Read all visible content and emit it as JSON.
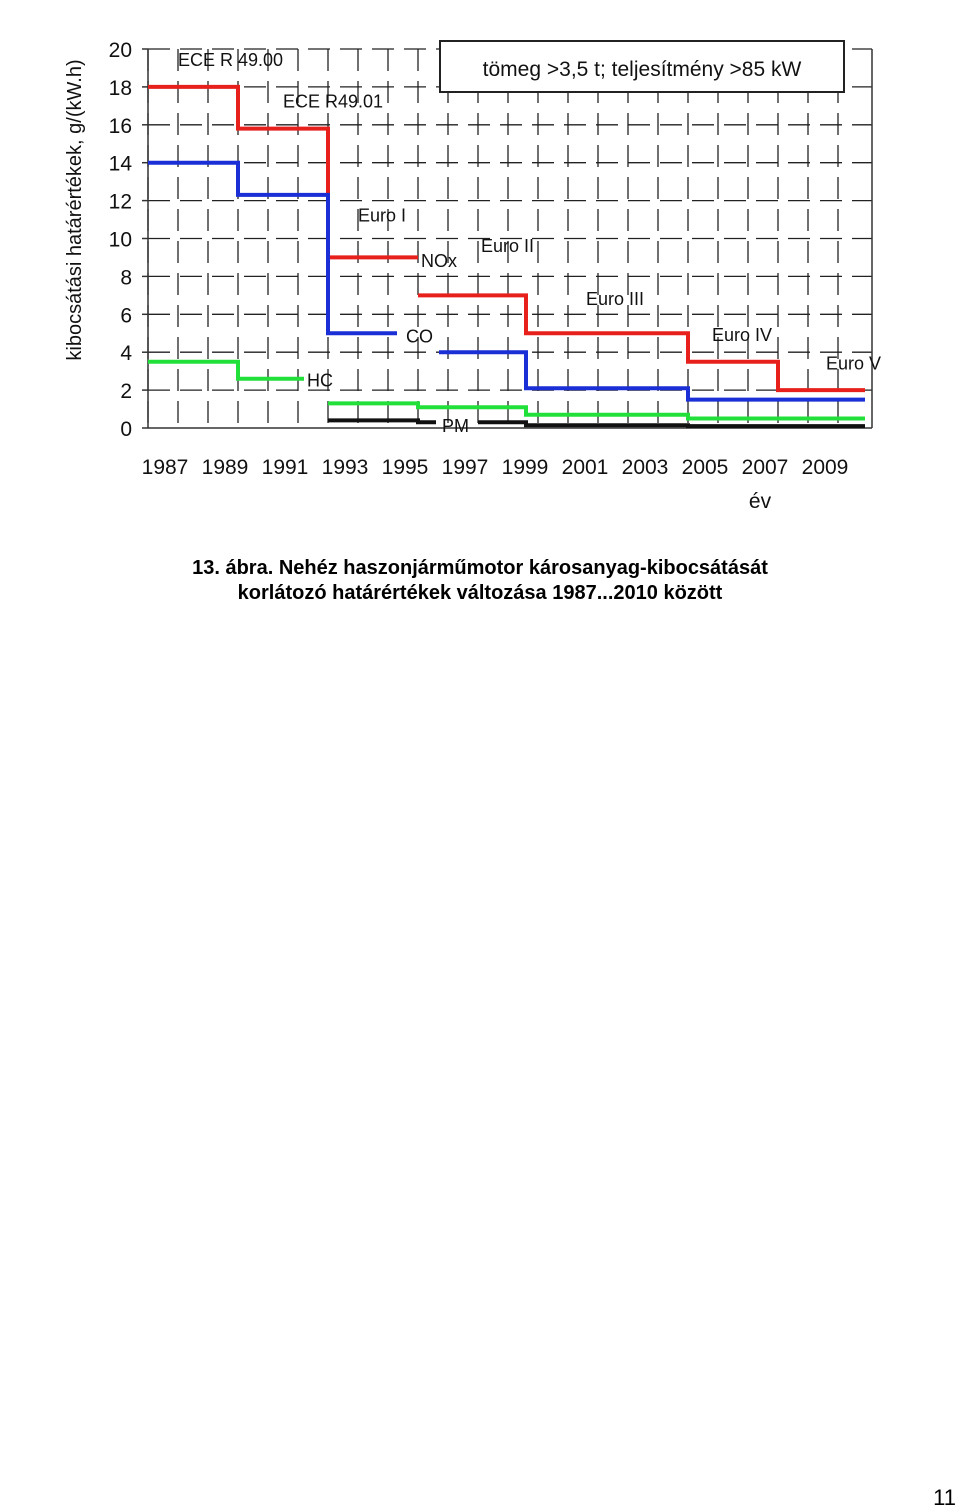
{
  "chart_data": {
    "type": "line",
    "step": true,
    "ylabel": "kibocsátási határértékek, g/(kW.h)",
    "xlabel": "év",
    "box_label": "tömeg >3,5 t; teljesítmény >85 kW",
    "xlim": [
      1987,
      2011
    ],
    "ylim": [
      0,
      20
    ],
    "x_ticks": [
      1987,
      1989,
      1991,
      1993,
      1995,
      1997,
      1999,
      2001,
      2003,
      2005,
      2007,
      2009
    ],
    "y_ticks": [
      0,
      2,
      4,
      6,
      8,
      10,
      12,
      14,
      16,
      18,
      20
    ],
    "grid": true,
    "series": [
      {
        "name": "NOx",
        "color": "#e8201c",
        "segments": [
          [
            [
              1987,
              18
            ],
            [
              1990,
              18
            ],
            [
              1990,
              15.8
            ],
            [
              1993,
              15.8
            ],
            [
              1993,
              9
            ],
            [
              1996,
              9
            ]
          ],
          [
            [
              1996,
              7
            ],
            [
              1999.6,
              7
            ],
            [
              1999.6,
              5
            ],
            [
              2005,
              5
            ],
            [
              2005,
              3.5
            ],
            [
              2008,
              3.5
            ],
            [
              2008,
              2
            ],
            [
              2010.9,
              2
            ]
          ]
        ]
      },
      {
        "name": "CO",
        "color": "#1a2fd6",
        "segments": [
          [
            [
              1987,
              14
            ],
            [
              1990,
              14
            ],
            [
              1990,
              12.3
            ],
            [
              1993,
              12.3
            ],
            [
              1993,
              5
            ],
            [
              1995.3,
              5
            ]
          ],
          [
            [
              1996.7,
              4
            ],
            [
              1999.6,
              4
            ],
            [
              1999.6,
              2.1
            ],
            [
              2005,
              2.1
            ],
            [
              2005,
              1.5
            ],
            [
              2010.9,
              1.5
            ]
          ]
        ]
      },
      {
        "name": "HC",
        "color": "#22e03a",
        "segments": [
          [
            [
              1987,
              3.5
            ],
            [
              1990,
              3.5
            ],
            [
              1990,
              2.6
            ],
            [
              1992.2,
              2.6
            ]
          ],
          [
            [
              1993,
              1.3
            ],
            [
              1996,
              1.3
            ],
            [
              1996,
              1.1
            ],
            [
              1999.6,
              1.1
            ],
            [
              1999.6,
              0.7
            ],
            [
              2005,
              0.7
            ],
            [
              2005,
              0.5
            ],
            [
              2010.9,
              0.5
            ]
          ]
        ]
      },
      {
        "name": "PM",
        "color": "#111111",
        "segments": [
          [
            [
              1993,
              0.4
            ],
            [
              1996,
              0.4
            ],
            [
              1996,
              0.3
            ],
            [
              1996.6,
              0.3
            ]
          ],
          [
            [
              1998,
              0.3
            ],
            [
              1999.6,
              0.3
            ],
            [
              1999.6,
              0.15
            ],
            [
              2005,
              0.15
            ],
            [
              2005,
              0.1
            ],
            [
              2010.9,
              0.1
            ]
          ]
        ]
      }
    ],
    "annotations": [
      {
        "text": "ECE R 49.00",
        "x": 1988,
        "y": 19.1
      },
      {
        "text": "ECE R49.01",
        "x": 1991.5,
        "y": 16.9
      },
      {
        "text": "Euro I",
        "x": 1994,
        "y": 10.9
      },
      {
        "text": "NOx",
        "x": 1996.1,
        "y": 8.5
      },
      {
        "text": "Euro II",
        "x": 1998.1,
        "y": 9.3
      },
      {
        "text": "Euro III",
        "x": 2001.6,
        "y": 6.5
      },
      {
        "text": "CO",
        "x": 1995.6,
        "y": 4.5
      },
      {
        "text": "Euro IV",
        "x": 2005.8,
        "y": 4.6
      },
      {
        "text": "Euro V",
        "x": 2009.6,
        "y": 3.1
      },
      {
        "text": "HC",
        "x": 1992.3,
        "y": 2.2
      },
      {
        "text": "PM",
        "x": 1996.8,
        "y": -0.2
      }
    ]
  },
  "caption": {
    "line1": "13. ábra. Nehéz haszonjárműmotor károsanyag-kibocsátását",
    "line2": "korlátozó határértékek változása 1987...2010 között"
  },
  "page_number": "11"
}
